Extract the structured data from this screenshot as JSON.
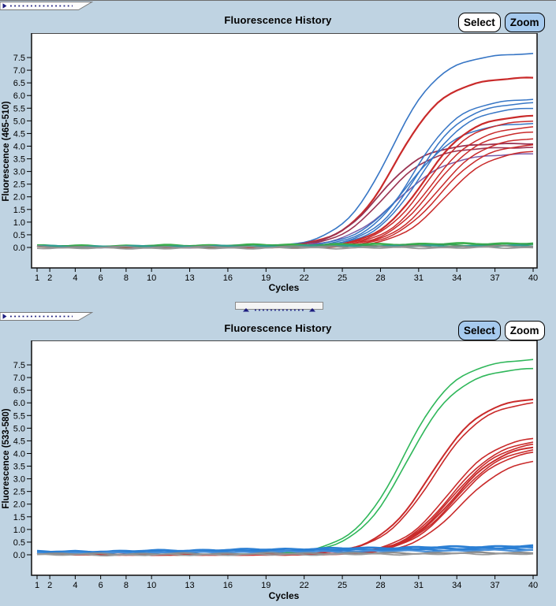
{
  "app": {
    "background": "#BFD3E2",
    "plot_background": "#FFFFFF",
    "button_active_bg": "#A6CAEE",
    "accent_navy": "#1b1b7e"
  },
  "panels": [
    {
      "title": "Fluorescence History",
      "buttons": [
        {
          "label": "Select",
          "active": false
        },
        {
          "label": "Zoom",
          "active": true
        }
      ],
      "chart_data": {
        "type": "line",
        "title": "Fluorescence History",
        "xlabel": "Cycles",
        "ylabel": "Fluorescence (465-510)",
        "x_ticks": [
          1,
          2,
          4,
          6,
          8,
          10,
          13,
          16,
          19,
          22,
          25,
          28,
          31,
          34,
          37,
          40
        ],
        "y_ticks": [
          7.5,
          7.0,
          6.5,
          6.0,
          5.5,
          5.0,
          4.5,
          4.0,
          3.5,
          3.0,
          2.5,
          2.0,
          1.5,
          1.0,
          0.5,
          0.0
        ],
        "x_range": [
          0.6,
          40.3
        ],
        "y_range": [
          -0.8,
          8.45
        ],
        "grid": false,
        "legend": "none",
        "series": [
          {
            "color": "#3776C5",
            "line_width": 1.6,
            "model": "sigmoid",
            "value_at_cycle_40": 7.65,
            "midpoint_cycle": 28.8,
            "slope": 0.52
          },
          {
            "color": "#C92A2A",
            "line_width": 2.2,
            "model": "sigmoid",
            "value_at_cycle_40": 6.7,
            "midpoint_cycle": 29.2,
            "slope": 0.52
          },
          {
            "color": "#9A3352",
            "line_width": 1.8,
            "model": "sigmoid",
            "value_at_cycle_40": 4.1,
            "midpoint_cycle": 27.9,
            "slope": 0.56
          },
          {
            "color": "#9A3352",
            "line_width": 1.6,
            "model": "sigmoid",
            "value_at_cycle_40": 3.95,
            "midpoint_cycle": 28.3,
            "slope": 0.56
          },
          {
            "color": "#7A5BA8",
            "line_width": 1.5,
            "model": "sigmoid",
            "value_at_cycle_40": 3.7,
            "midpoint_cycle": 29.3,
            "slope": 0.5
          },
          {
            "color": "#3776C5",
            "line_width": 1.5,
            "model": "sigmoid",
            "value_at_cycle_40": 5.85,
            "midpoint_cycle": 30.6,
            "slope": 0.55
          },
          {
            "color": "#3776C5",
            "line_width": 1.5,
            "model": "sigmoid",
            "value_at_cycle_40": 5.7,
            "midpoint_cycle": 30.9,
            "slope": 0.55
          },
          {
            "color": "#3776C5",
            "line_width": 1.5,
            "model": "sigmoid",
            "value_at_cycle_40": 5.5,
            "midpoint_cycle": 31.1,
            "slope": 0.55
          },
          {
            "color": "#3776C5",
            "line_width": 1.5,
            "model": "sigmoid",
            "value_at_cycle_40": 4.9,
            "midpoint_cycle": 30.2,
            "slope": 0.5
          },
          {
            "color": "#C92A2A",
            "line_width": 2.2,
            "model": "sigmoid",
            "value_at_cycle_40": 5.2,
            "midpoint_cycle": 31.4,
            "slope": 0.55
          },
          {
            "color": "#C92A2A",
            "line_width": 1.5,
            "model": "sigmoid",
            "value_at_cycle_40": 5.0,
            "midpoint_cycle": 31.6,
            "slope": 0.55
          },
          {
            "color": "#C92A2A",
            "line_width": 1.5,
            "model": "sigmoid",
            "value_at_cycle_40": 4.75,
            "midpoint_cycle": 31.9,
            "slope": 0.55
          },
          {
            "color": "#C92A2A",
            "line_width": 1.5,
            "model": "sigmoid",
            "value_at_cycle_40": 4.55,
            "midpoint_cycle": 32.1,
            "slope": 0.55
          },
          {
            "color": "#C92A2A",
            "line_width": 1.5,
            "model": "sigmoid",
            "value_at_cycle_40": 4.3,
            "midpoint_cycle": 32.4,
            "slope": 0.55
          },
          {
            "color": "#C92A2A",
            "line_width": 1.5,
            "model": "sigmoid",
            "value_at_cycle_40": 4.05,
            "midpoint_cycle": 32.6,
            "slope": 0.55
          },
          {
            "color": "#C92A2A",
            "line_width": 1.5,
            "model": "sigmoid",
            "value_at_cycle_40": 3.8,
            "midpoint_cycle": 33.0,
            "slope": 0.55
          },
          {
            "color": "#3CAE4C",
            "line_width": 2.6,
            "model": "flat",
            "start_value": 0.04,
            "end_value": 0.16
          },
          {
            "color": "#35A055",
            "line_width": 2.2,
            "model": "flat",
            "start_value": 0.02,
            "end_value": 0.1
          },
          {
            "color": "#2F9E93",
            "line_width": 2.2,
            "model": "flat",
            "start_value": 0.03,
            "end_value": 0.06
          },
          {
            "color": "#8C8C8C",
            "line_width": 2.0,
            "model": "flat",
            "start_value": 0.0,
            "end_value": 0.04
          },
          {
            "color": "#999999",
            "line_width": 1.8,
            "model": "flat",
            "start_value": -0.04,
            "end_value": -0.01
          }
        ]
      }
    },
    {
      "title": "Fluorescence History",
      "buttons": [
        {
          "label": "Select",
          "active": true
        },
        {
          "label": "Zoom",
          "active": false
        }
      ],
      "chart_data": {
        "type": "line",
        "title": "Fluorescence History",
        "xlabel": "Cycles",
        "ylabel": "Fluorescence (533-580)",
        "x_ticks": [
          1,
          2,
          4,
          6,
          8,
          10,
          13,
          16,
          19,
          22,
          25,
          28,
          31,
          34,
          37,
          40
        ],
        "y_ticks": [
          7.5,
          7.0,
          6.5,
          6.0,
          5.5,
          5.0,
          4.5,
          4.0,
          3.5,
          3.0,
          2.5,
          2.0,
          1.5,
          1.0,
          0.5,
          0.0
        ],
        "x_range": [
          0.6,
          40.3
        ],
        "y_range": [
          -0.8,
          8.45
        ],
        "grid": false,
        "legend": "none",
        "series": [
          {
            "color": "#2FB75A",
            "line_width": 1.6,
            "model": "sigmoid",
            "value_at_cycle_40": 7.7,
            "midpoint_cycle": 29.8,
            "slope": 0.5
          },
          {
            "color": "#2FB75A",
            "line_width": 1.6,
            "model": "sigmoid",
            "value_at_cycle_40": 7.35,
            "midpoint_cycle": 30.1,
            "slope": 0.5
          },
          {
            "color": "#C92A2A",
            "line_width": 2.0,
            "model": "sigmoid",
            "value_at_cycle_40": 6.15,
            "midpoint_cycle": 31.9,
            "slope": 0.5
          },
          {
            "color": "#C92A2A",
            "line_width": 1.6,
            "model": "sigmoid",
            "value_at_cycle_40": 6.0,
            "midpoint_cycle": 32.1,
            "slope": 0.5
          },
          {
            "color": "#C92A2A",
            "line_width": 1.6,
            "model": "sigmoid",
            "value_at_cycle_40": 4.6,
            "midpoint_cycle": 33.3,
            "slope": 0.52
          },
          {
            "color": "#C92A2A",
            "line_width": 1.6,
            "model": "sigmoid",
            "value_at_cycle_40": 4.45,
            "midpoint_cycle": 33.5,
            "slope": 0.52
          },
          {
            "color": "#C92A2A",
            "line_width": 1.6,
            "model": "sigmoid",
            "value_at_cycle_40": 4.35,
            "midpoint_cycle": 33.6,
            "slope": 0.52
          },
          {
            "color": "#C92A2A",
            "line_width": 2.0,
            "model": "sigmoid",
            "value_at_cycle_40": 4.25,
            "midpoint_cycle": 33.7,
            "slope": 0.52
          },
          {
            "color": "#C92A2A",
            "line_width": 1.6,
            "model": "sigmoid",
            "value_at_cycle_40": 4.15,
            "midpoint_cycle": 33.8,
            "slope": 0.52
          },
          {
            "color": "#C92A2A",
            "line_width": 1.6,
            "model": "sigmoid",
            "value_at_cycle_40": 4.05,
            "midpoint_cycle": 33.9,
            "slope": 0.52
          },
          {
            "color": "#C92A2A",
            "line_width": 1.6,
            "model": "sigmoid",
            "value_at_cycle_40": 3.7,
            "midpoint_cycle": 34.3,
            "slope": 0.52
          },
          {
            "color": "#2B7FD4",
            "line_width": 2.6,
            "model": "flat",
            "start_value": 0.1,
            "end_value": 0.35
          },
          {
            "color": "#2B7FD4",
            "line_width": 2.6,
            "model": "flat",
            "start_value": 0.08,
            "end_value": 0.28
          },
          {
            "color": "#2B7FD4",
            "line_width": 2.2,
            "model": "flat",
            "start_value": 0.06,
            "end_value": 0.22
          },
          {
            "color": "#4A90D9",
            "line_width": 2.0,
            "model": "flat",
            "start_value": 0.05,
            "end_value": 0.18
          },
          {
            "color": "#8C8C8C",
            "line_width": 2.2,
            "model": "flat",
            "start_value": 0.02,
            "end_value": 0.08
          },
          {
            "color": "#999999",
            "line_width": 1.8,
            "model": "flat",
            "start_value": -0.02,
            "end_value": 0.04
          }
        ]
      }
    }
  ]
}
